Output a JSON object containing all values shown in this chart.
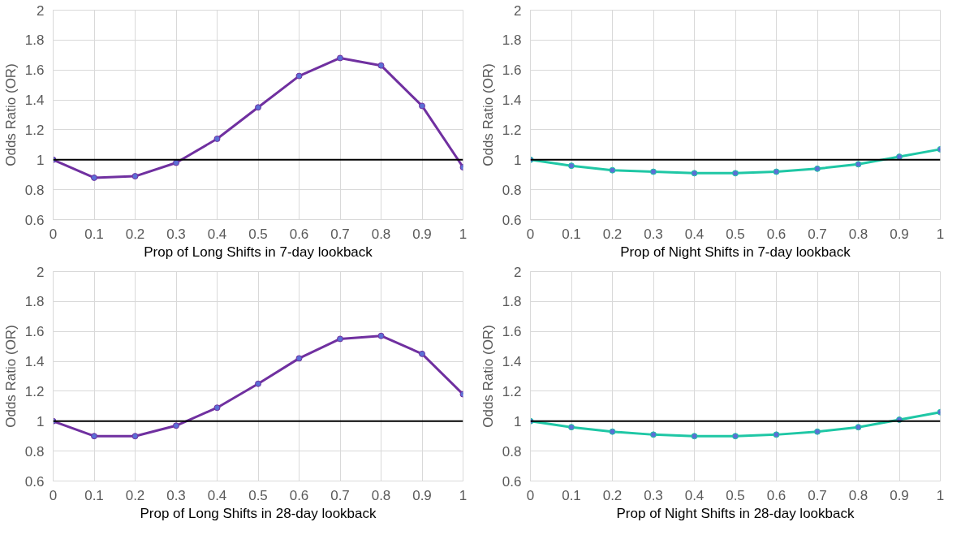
{
  "chart_data": [
    {
      "type": "line",
      "xlabel": "Prop of Long Shifts in 7-day lookback",
      "ylabel": "Odds Ratio (OR)",
      "x": [
        0,
        0.1,
        0.2,
        0.3,
        0.4,
        0.5,
        0.6,
        0.7,
        0.8,
        0.9,
        1
      ],
      "xlim": [
        0,
        1
      ],
      "xticks": [
        0,
        0.1,
        0.2,
        0.3,
        0.4,
        0.5,
        0.6,
        0.7,
        0.8,
        0.9,
        1
      ],
      "ylim": [
        0.6,
        2
      ],
      "yticks": [
        0.6,
        0.8,
        1,
        1.2,
        1.4,
        1.6,
        1.8,
        2
      ],
      "grid": true,
      "marker": "circle",
      "series": [
        {
          "color": "#7030a0",
          "values": [
            1.0,
            0.88,
            0.89,
            0.98,
            1.14,
            1.35,
            1.56,
            1.68,
            1.63,
            1.36,
            0.95
          ]
        }
      ],
      "ref_lines": [
        {
          "axis": "y",
          "value": 1,
          "color": "#000000"
        }
      ]
    },
    {
      "type": "line",
      "xlabel": "Prop of Night Shifts in 7-day lookback",
      "ylabel": "Odds Ratio (OR)",
      "x": [
        0,
        0.1,
        0.2,
        0.3,
        0.4,
        0.5,
        0.6,
        0.7,
        0.8,
        0.9,
        1
      ],
      "xlim": [
        0,
        1
      ],
      "xticks": [
        0,
        0.1,
        0.2,
        0.3,
        0.4,
        0.5,
        0.6,
        0.7,
        0.8,
        0.9,
        1
      ],
      "ylim": [
        0.6,
        2
      ],
      "yticks": [
        0.6,
        0.8,
        1,
        1.2,
        1.4,
        1.6,
        1.8,
        2
      ],
      "grid": true,
      "marker": "circle",
      "series": [
        {
          "color": "#1fc7a5",
          "values": [
            1.0,
            0.96,
            0.93,
            0.92,
            0.91,
            0.91,
            0.92,
            0.94,
            0.97,
            1.02,
            1.07
          ]
        }
      ],
      "ref_lines": [
        {
          "axis": "y",
          "value": 1,
          "color": "#000000"
        }
      ]
    },
    {
      "type": "line",
      "xlabel": "Prop of Long Shifts in 28-day lookback",
      "ylabel": "Odds Ratio (OR)",
      "x": [
        0,
        0.1,
        0.2,
        0.3,
        0.4,
        0.5,
        0.6,
        0.7,
        0.8,
        0.9,
        1
      ],
      "xlim": [
        0,
        1
      ],
      "xticks": [
        0,
        0.1,
        0.2,
        0.3,
        0.4,
        0.5,
        0.6,
        0.7,
        0.8,
        0.9,
        1
      ],
      "ylim": [
        0.6,
        2
      ],
      "yticks": [
        0.6,
        0.8,
        1,
        1.2,
        1.4,
        1.6,
        1.8,
        2
      ],
      "grid": true,
      "marker": "circle",
      "series": [
        {
          "color": "#7030a0",
          "values": [
            1.0,
            0.9,
            0.9,
            0.97,
            1.09,
            1.25,
            1.42,
            1.55,
            1.57,
            1.45,
            1.18
          ]
        }
      ],
      "ref_lines": [
        {
          "axis": "y",
          "value": 1,
          "color": "#000000"
        }
      ]
    },
    {
      "type": "line",
      "xlabel": "Prop of Night Shifts in 28-day lookback",
      "ylabel": "Odds Ratio (OR)",
      "x": [
        0,
        0.1,
        0.2,
        0.3,
        0.4,
        0.5,
        0.6,
        0.7,
        0.8,
        0.9,
        1
      ],
      "xlim": [
        0,
        1
      ],
      "xticks": [
        0,
        0.1,
        0.2,
        0.3,
        0.4,
        0.5,
        0.6,
        0.7,
        0.8,
        0.9,
        1
      ],
      "ylim": [
        0.6,
        2
      ],
      "yticks": [
        0.6,
        0.8,
        1,
        1.2,
        1.4,
        1.6,
        1.8,
        2
      ],
      "grid": true,
      "marker": "circle",
      "series": [
        {
          "color": "#1fc7a5",
          "values": [
            1.0,
            0.96,
            0.93,
            0.91,
            0.9,
            0.9,
            0.91,
            0.93,
            0.96,
            1.01,
            1.06
          ]
        }
      ],
      "ref_lines": [
        {
          "axis": "y",
          "value": 1,
          "color": "#000000"
        }
      ]
    }
  ]
}
